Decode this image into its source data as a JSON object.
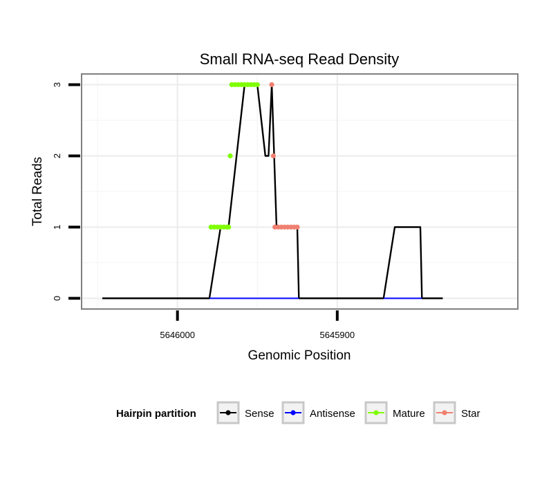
{
  "chart_data": {
    "type": "line",
    "title": "Small RNA-seq Read Density",
    "xlabel": "Genomic Position",
    "ylabel": "Total Reads",
    "xlim": [
      5646060,
      5645787
    ],
    "ylim": [
      -0.15,
      3.15
    ],
    "x_reversed": true,
    "grid": true,
    "xticks": [
      5646000,
      5645900
    ],
    "xtick_labels": [
      "5646000",
      "5645900"
    ],
    "yticks": [
      0,
      1,
      2,
      3
    ],
    "ytick_labels": [
      "0",
      "1",
      "2",
      "3"
    ],
    "series": [
      {
        "name": "Sense",
        "color": "#000000",
        "x": [
          5646047,
          5645980,
          5645973,
          5645968,
          5645958,
          5645950,
          5645945,
          5645943,
          5645941,
          5645938,
          5645925,
          5645924,
          5645871,
          5645864,
          5645848,
          5645847,
          5645834
        ],
        "values": [
          0,
          0,
          1,
          1,
          3,
          3,
          2,
          2,
          3,
          1,
          1,
          0,
          0,
          1,
          1,
          0,
          0
        ]
      },
      {
        "name": "Antisense",
        "color": "#0000ff",
        "x": [
          5645980,
          5645924,
          5645871,
          5645847
        ],
        "values": [
          0,
          0,
          0,
          0
        ]
      },
      {
        "name": "Mature",
        "color": "#7fff00",
        "x": [
          5645979,
          5645977,
          5645975,
          5645973,
          5645971,
          5645969,
          5645968,
          5645967,
          5645966,
          5645964,
          5645962,
          5645960,
          5645958,
          5645956,
          5645954,
          5645952,
          5645950
        ],
        "values": [
          1,
          1,
          1,
          1,
          1,
          1,
          1,
          2,
          3,
          3,
          3,
          3,
          3,
          3,
          3,
          3,
          3
        ]
      },
      {
        "name": "Star",
        "color": "#f08070",
        "x": [
          5645941,
          5645940,
          5645939,
          5645937,
          5645935,
          5645933,
          5645931,
          5645929,
          5645927,
          5645925
        ],
        "values": [
          3,
          2,
          1,
          1,
          1,
          1,
          1,
          1,
          1,
          1
        ]
      }
    ],
    "legend": {
      "title": "Hairpin partition",
      "position": "bottom",
      "entries": [
        "Sense",
        "Antisense",
        "Mature",
        "Star"
      ]
    }
  }
}
